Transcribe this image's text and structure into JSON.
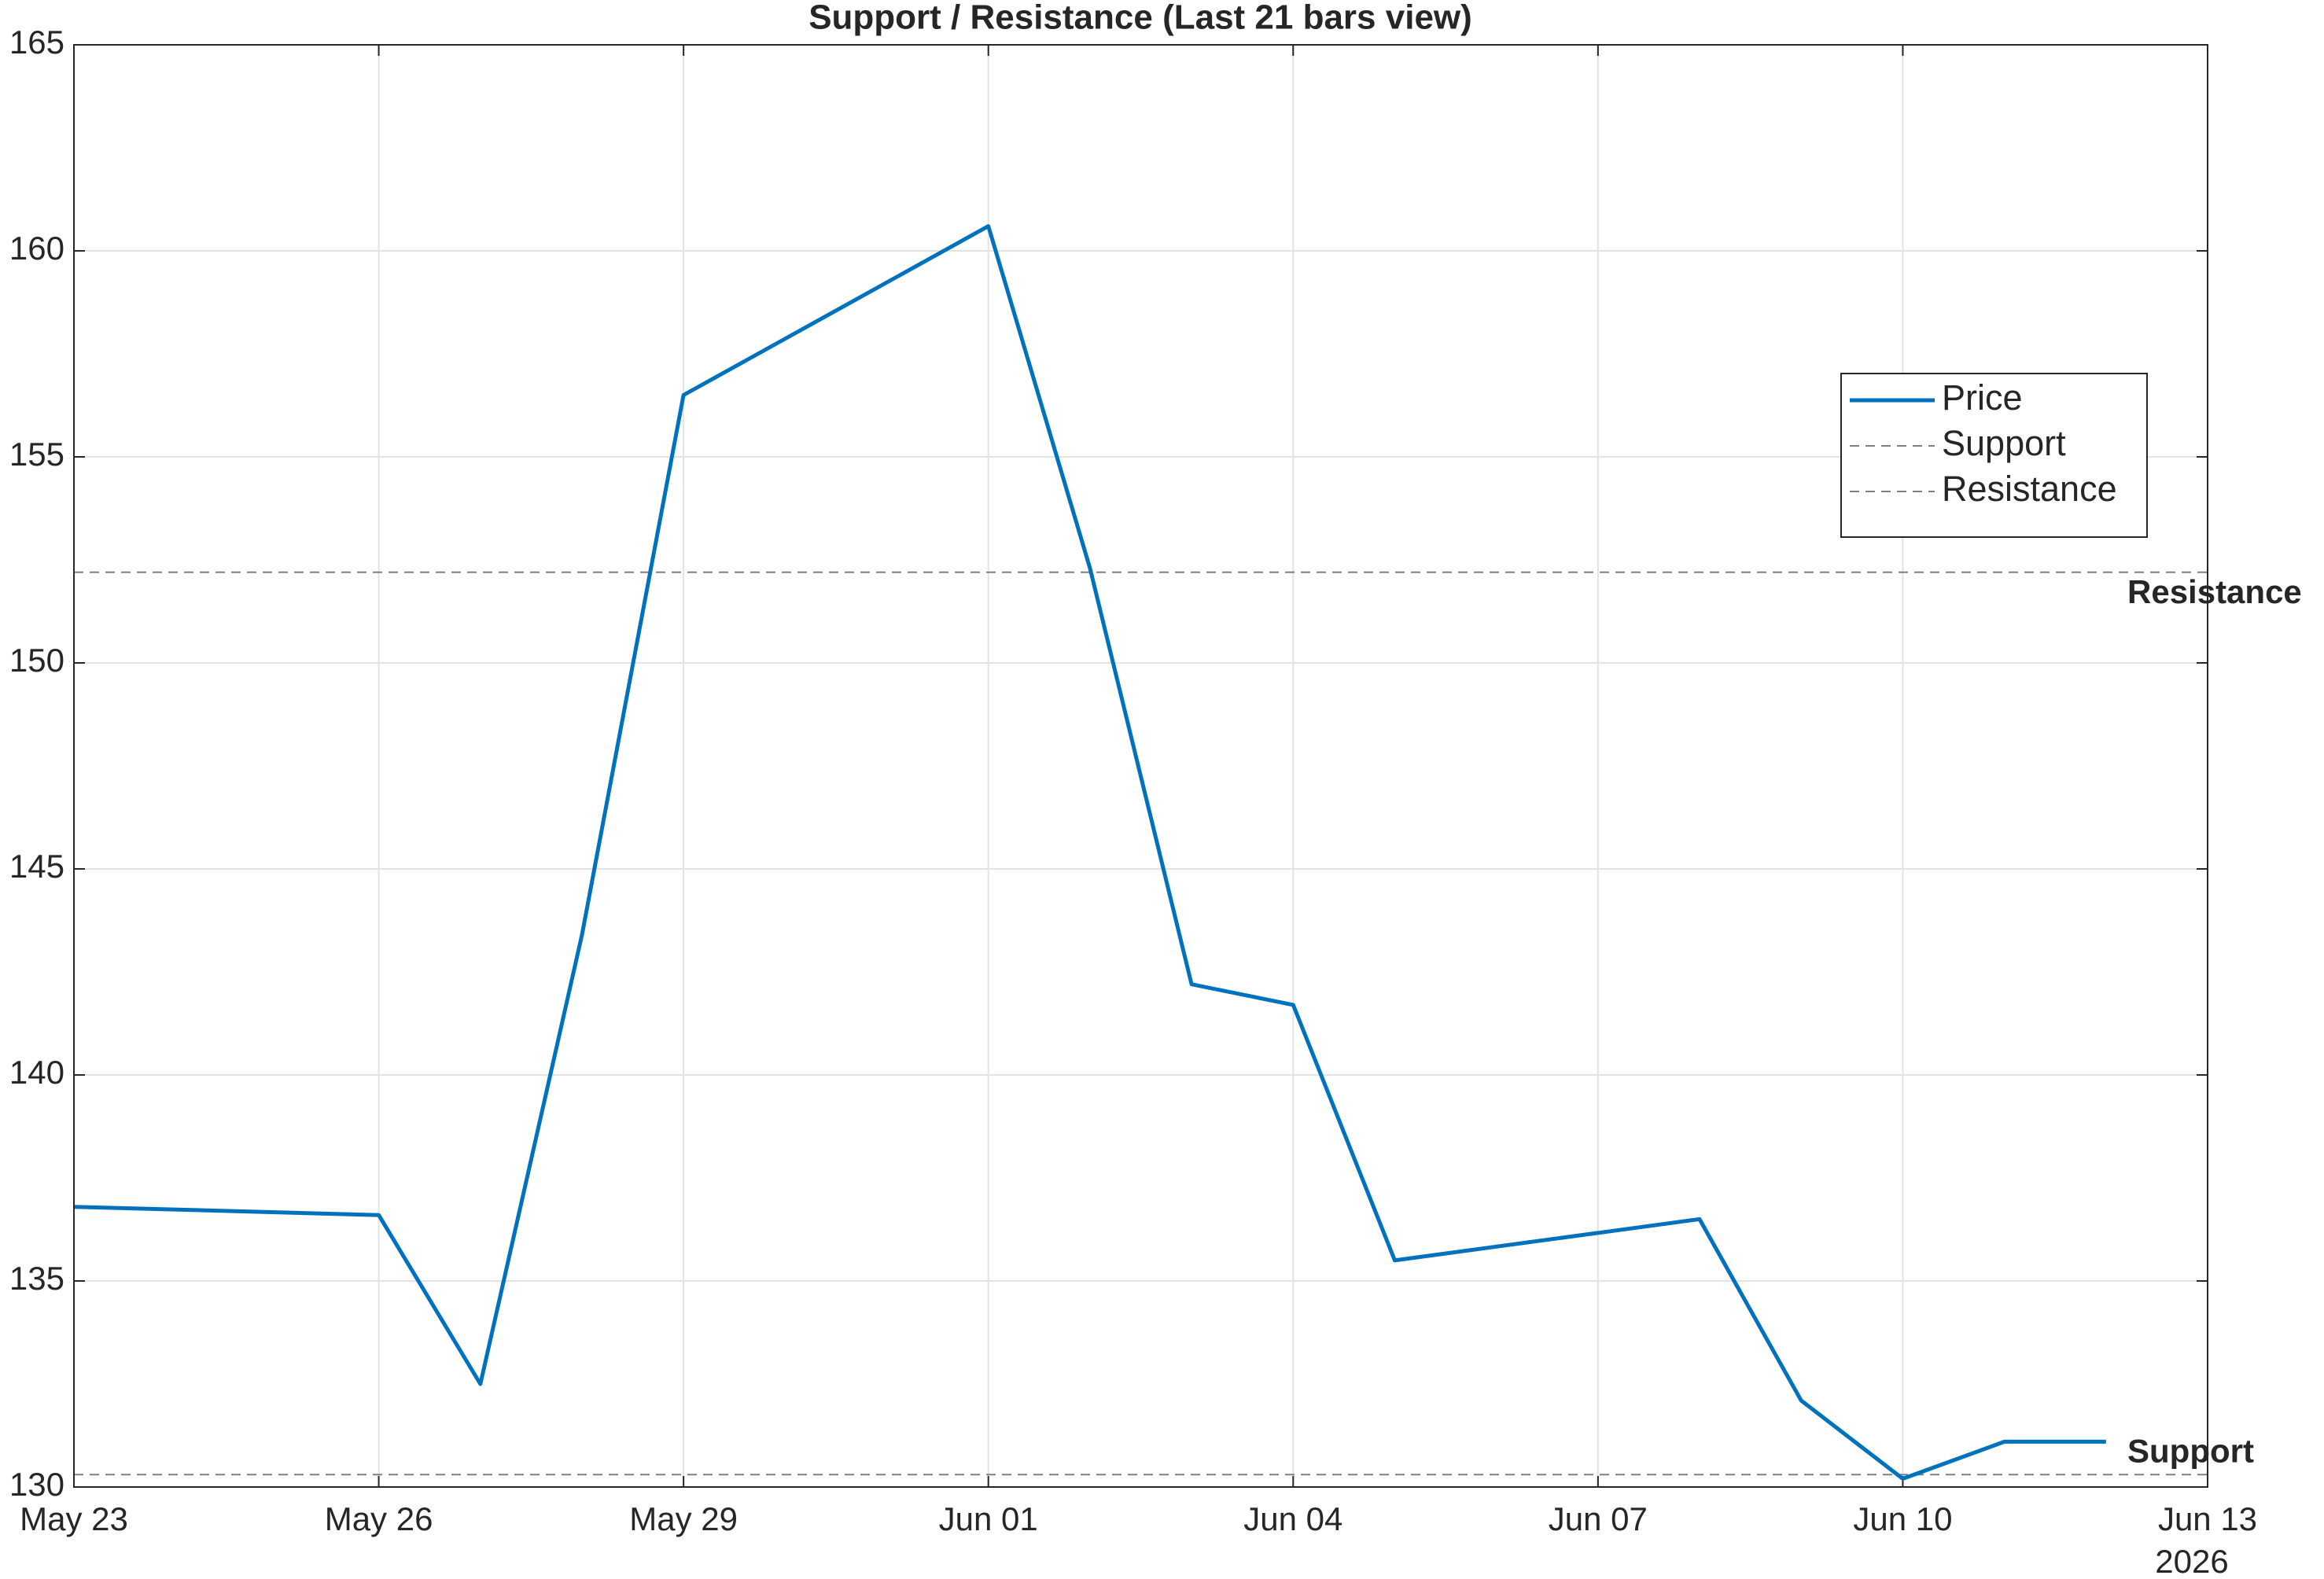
{
  "chart_data": {
    "type": "line",
    "title": "Support / Resistance (Last 21 bars view)",
    "x": [
      "2026-05-23",
      "2026-05-26",
      "2026-05-27",
      "2026-05-28",
      "2026-05-29",
      "2026-06-01",
      "2026-06-02",
      "2026-06-03",
      "2026-06-04",
      "2026-06-05",
      "2026-06-08",
      "2026-06-09",
      "2026-06-10",
      "2026-06-11",
      "2026-06-12"
    ],
    "series": [
      {
        "name": "Price",
        "color": "#0072bd",
        "values": [
          136.8,
          136.6,
          132.5,
          143.4,
          156.5,
          160.6,
          152.3,
          142.2,
          141.7,
          135.5,
          136.5,
          132.1,
          130.2,
          131.1,
          131.1
        ]
      }
    ],
    "reference_lines": [
      {
        "name": "Support",
        "value": 130.3,
        "color": "#808080"
      },
      {
        "name": "Resistance",
        "value": 152.2,
        "color": "#808080"
      }
    ],
    "xlim": [
      "2026-05-23",
      "2026-06-13"
    ],
    "xticks": [
      {
        "value": "2026-05-23",
        "label": "May 23"
      },
      {
        "value": "2026-05-26",
        "label": "May 26"
      },
      {
        "value": "2026-05-29",
        "label": "May 29"
      },
      {
        "value": "2026-06-01",
        "label": "Jun 01"
      },
      {
        "value": "2026-06-04",
        "label": "Jun 04"
      },
      {
        "value": "2026-06-07",
        "label": "Jun 07"
      },
      {
        "value": "2026-06-10",
        "label": "Jun 10"
      },
      {
        "value": "2026-06-13",
        "label": "Jun 13"
      }
    ],
    "x_year_label": "2026",
    "ylim": [
      130,
      165
    ],
    "yticks": [
      130,
      135,
      140,
      145,
      150,
      155,
      160,
      165
    ],
    "grid": true,
    "legend": "upper right"
  }
}
